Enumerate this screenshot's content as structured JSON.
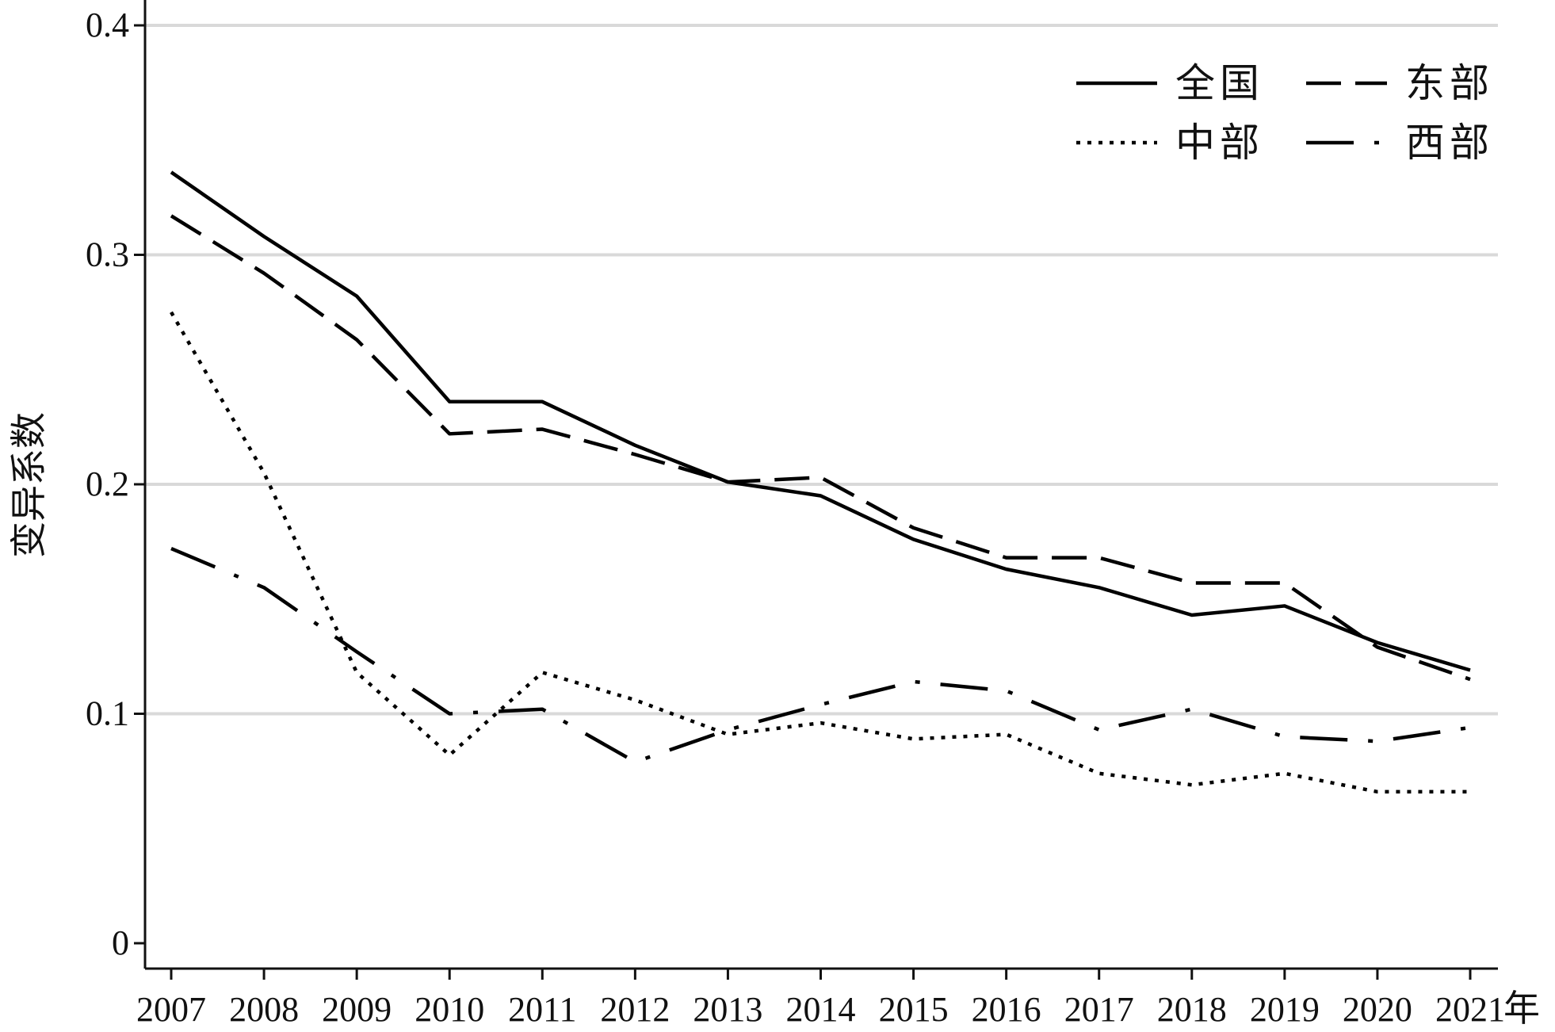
{
  "chart_data": {
    "type": "line",
    "title": "",
    "ylabel": "变异系数",
    "xunit": "年",
    "x": [
      "2007",
      "2008",
      "2009",
      "2010",
      "2011",
      "2012",
      "2013",
      "2014",
      "2015",
      "2016",
      "2017",
      "2018",
      "2019",
      "2020",
      "2021"
    ],
    "ylim": [
      0,
      0.4
    ],
    "yticks": [
      "0",
      "0.1",
      "0.2",
      "0.3",
      "0.4"
    ],
    "ytick_values": [
      0,
      0.1,
      0.2,
      0.3,
      0.4
    ],
    "grid": "horizontal",
    "legend_position": "top-right",
    "series": [
      {
        "name": "全国",
        "style": "solid",
        "color": "#000000",
        "values": [
          0.336,
          0.308,
          0.282,
          0.236,
          0.236,
          0.217,
          0.201,
          0.195,
          0.176,
          0.163,
          0.155,
          0.143,
          0.147,
          0.131,
          0.119
        ]
      },
      {
        "name": "东部",
        "style": "dashed",
        "color": "#000000",
        "values": [
          0.317,
          0.292,
          0.263,
          0.222,
          0.224,
          0.213,
          0.201,
          0.203,
          0.181,
          0.168,
          0.168,
          0.157,
          0.157,
          0.129,
          0.115
        ]
      },
      {
        "name": "中部",
        "style": "dotted",
        "color": "#000000",
        "values": [
          0.275,
          0.205,
          0.118,
          0.082,
          0.118,
          0.106,
          0.091,
          0.096,
          0.089,
          0.091,
          0.074,
          0.069,
          0.074,
          0.066,
          0.066
        ]
      },
      {
        "name": "西部",
        "style": "dashdot",
        "color": "#000000",
        "values": [
          0.172,
          0.155,
          0.127,
          0.1,
          0.102,
          0.079,
          0.093,
          0.104,
          0.114,
          0.11,
          0.093,
          0.102,
          0.09,
          0.088,
          0.094
        ]
      }
    ]
  }
}
